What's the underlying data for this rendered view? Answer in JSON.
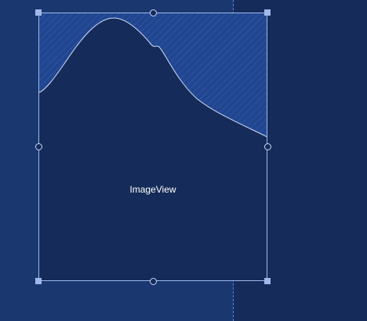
{
  "imageview": {
    "label": "ImageView"
  },
  "colors": {
    "canvas_background": "#1a3770",
    "right_pane_background": "#152b59",
    "view_fill": "#152b59",
    "view_border": "#9fb8ea",
    "vector_fill": "#21468f",
    "vector_hatch": "#2a54a5",
    "vector_stroke": "#d0dcf5",
    "guide_line": "#5e86d6",
    "label_text": "#ffffff"
  },
  "icons": {
    "corner_handle": "square-resize-handle-icon",
    "edge_handle": "circle-resize-handle-icon"
  }
}
